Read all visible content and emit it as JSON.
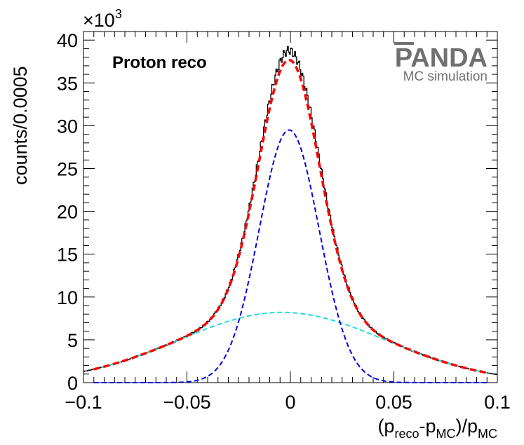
{
  "chart_data": {
    "type": "line",
    "title": "",
    "annotation": "Proton reco",
    "logo": {
      "name": "PANDA",
      "subtitle": "MC simulation"
    },
    "xlabel": {
      "open": "(p",
      "reco": "reco",
      "dash": "-p",
      "mc": "MC",
      "mid": ")/p",
      "mc2": "MC"
    },
    "ylabel": "counts/0.0005",
    "y_multiplier_label": {
      "base": "×10",
      "exp": "3"
    },
    "xlim": [
      -0.1,
      0.1
    ],
    "ylim": [
      0,
      41
    ],
    "x_ticks": [
      -0.1,
      -0.05,
      0,
      0.05,
      0.1
    ],
    "x_tick_labels": [
      "−0.1",
      "−0.05",
      "0",
      "0.05",
      "0.1"
    ],
    "y_ticks": [
      0,
      5,
      10,
      15,
      20,
      25,
      30,
      35,
      40
    ],
    "y_tick_labels": [
      "0",
      "5",
      "10",
      "15",
      "20",
      "25",
      "30",
      "35",
      "40"
    ],
    "histogram": {
      "name": "data",
      "color": "#000000",
      "bin_width": 0.0005,
      "peak": {
        "amplitude": 38.8,
        "mean": -0.0006,
        "sigma": 0.0145
      },
      "broad": {
        "amplitude": 8.2,
        "mean": -0.004,
        "sigma": 0.05
      }
    },
    "series": [
      {
        "role": "total-fit",
        "color": "#ff0000",
        "style": "dashed-thick",
        "x_range": [
          -0.095,
          0.095
        ],
        "components": [
          {
            "amplitude": 29.5,
            "mean": -0.0006,
            "sigma": 0.0145
          },
          {
            "amplitude": 8.2,
            "mean": -0.004,
            "sigma": 0.05
          }
        ]
      },
      {
        "role": "narrow-gaussian",
        "color": "#0000dd",
        "style": "dashed",
        "x_range": [
          -0.095,
          0.095
        ],
        "components": [
          {
            "amplitude": 29.5,
            "mean": -0.0006,
            "sigma": 0.0145
          }
        ]
      },
      {
        "role": "wide-gaussian",
        "color": "#22dddd",
        "style": "dashed",
        "x_range": [
          -0.095,
          0.095
        ],
        "components": [
          {
            "amplitude": 8.2,
            "mean": -0.004,
            "sigma": 0.05
          }
        ]
      }
    ]
  }
}
